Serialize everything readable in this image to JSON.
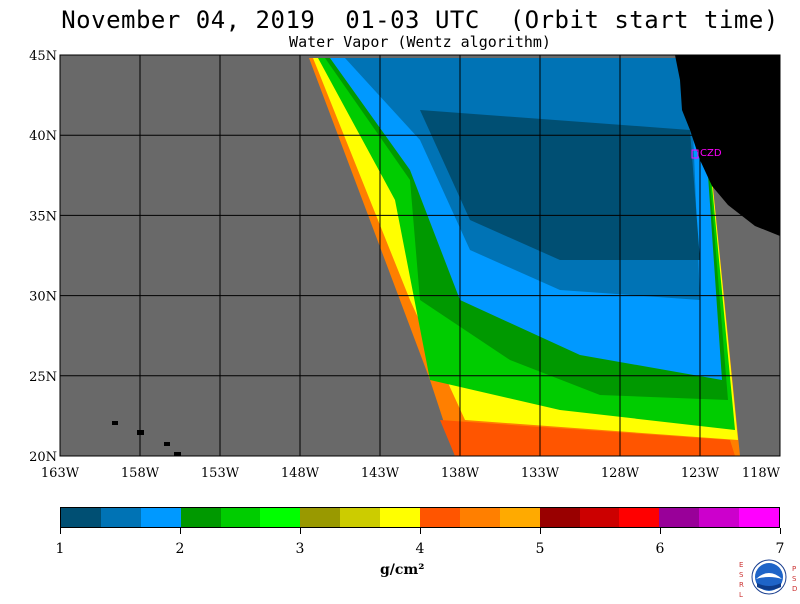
{
  "title": "November 04, 2019  01-03 UTC  (Orbit start time)",
  "subtitle": "Water Vapor (Wentz algorithm)",
  "map": {
    "lon_range": [
      -163,
      -118
    ],
    "lat_range": [
      20,
      45
    ],
    "x_ticks": [
      "163W",
      "158W",
      "153W",
      "148W",
      "143W",
      "138W",
      "133W",
      "128W",
      "123W",
      "118W"
    ],
    "y_ticks": [
      "45N",
      "40N",
      "35N",
      "30N",
      "25N",
      "20N"
    ],
    "land_color": "#000000",
    "no_data_color": "#696969",
    "station_label": "CZD",
    "station_color": "#ff00ff"
  },
  "colorbar": {
    "colors": [
      "#004f73",
      "#0073b5",
      "#0099ff",
      "#009900",
      "#00cc00",
      "#00ff00",
      "#999900",
      "#cccc00",
      "#ffff00",
      "#ff5500",
      "#ff7f00",
      "#ffaa00",
      "#990000",
      "#cc0000",
      "#ff0000",
      "#990099",
      "#cc00cc",
      "#ff00ff"
    ],
    "tick_labels": [
      "1",
      "2",
      "3",
      "4",
      "5",
      "6",
      "7"
    ],
    "units": "g/cm²"
  },
  "logo": {
    "left_letters": "ESRL",
    "right_letters": "PSD",
    "center_text": "NOAA"
  }
}
